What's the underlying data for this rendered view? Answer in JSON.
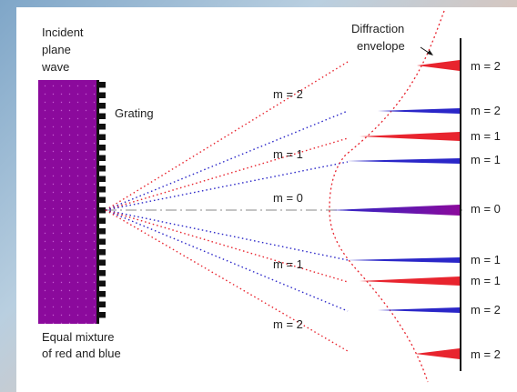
{
  "labels": {
    "incident_line1": "Incident",
    "incident_line2": "plane",
    "incident_line3": "wave",
    "grating": "Grating",
    "envelope_line1": "Diffraction",
    "envelope_line2": "envelope",
    "mixture_line1": "Equal mixture",
    "mixture_line2": "of red and blue"
  },
  "ray_labels": [
    {
      "text": "m = 2",
      "color": "#e8242e"
    },
    {
      "text": "m = 1",
      "color": "#e8242e"
    },
    {
      "text": "m = 0",
      "color": "#222222"
    },
    {
      "text": "m = 1",
      "color": "#e8242e"
    },
    {
      "text": "m = 2",
      "color": "#e8242e"
    }
  ],
  "screen_orders": [
    {
      "text": "m = 2",
      "color": "#e8242e"
    },
    {
      "text": "m = 2",
      "color": "#2a26c8"
    },
    {
      "text": "m = 1",
      "color": "#e8242e"
    },
    {
      "text": "m = 1",
      "color": "#2a26c8"
    },
    {
      "text": "m = 0",
      "color": "#6a1aa0"
    },
    {
      "text": "m = 1",
      "color": "#2a26c8"
    },
    {
      "text": "m = 1",
      "color": "#e8242e"
    },
    {
      "text": "m = 2",
      "color": "#2a26c8"
    },
    {
      "text": "m = 2",
      "color": "#e8242e"
    }
  ],
  "colors": {
    "red": "#e8242e",
    "blue": "#2a26c8",
    "purple": "#8b0a9c",
    "zero_order": "#6a1aa0",
    "grating": "#111111"
  }
}
